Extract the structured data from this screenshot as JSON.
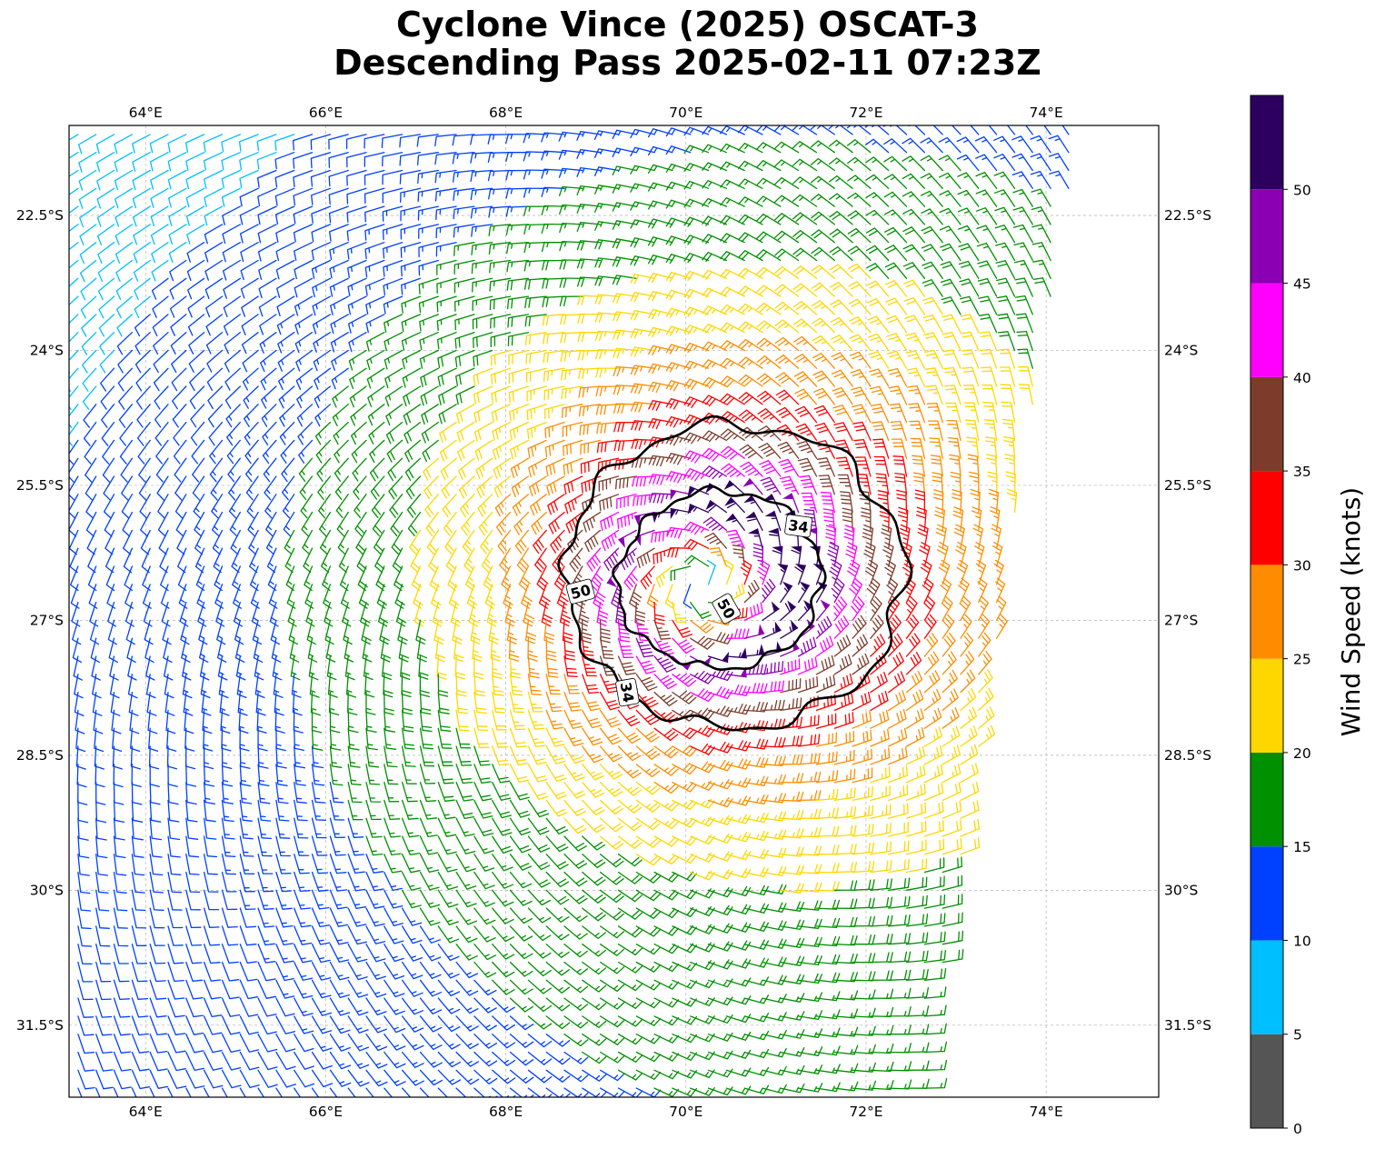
{
  "title": {
    "line1": "Cyclone Vince (2025) OSCAT-3",
    "line2": "Descending Pass 2025-02-11 07:23Z"
  },
  "map": {
    "lon_range": [
      63.15,
      75.25
    ],
    "lat_range": [
      -32.3,
      -21.5
    ],
    "gridlines": true,
    "lon_ticks": [
      64,
      66,
      68,
      70,
      72,
      74
    ],
    "lon_tick_labels": [
      "64°E",
      "66°E",
      "68°E",
      "70°E",
      "72°E",
      "74°E"
    ],
    "lat_ticks": [
      -22.5,
      -24,
      -25.5,
      -27,
      -28.5,
      -30,
      -31.5
    ],
    "lat_tick_labels": [
      "22.5°S",
      "24°S",
      "25.5°S",
      "27°S",
      "28.5°S",
      "30°S",
      "31.5°S"
    ],
    "cyclone_center": [
      70.2,
      -26.6
    ],
    "contours": [
      {
        "label": "34",
        "value_kt": 34
      },
      {
        "label": "50",
        "value_kt": 50
      }
    ]
  },
  "colorbar": {
    "label": "Wind Speed (knots)",
    "bounds": [
      0,
      5,
      10,
      15,
      20,
      25,
      30,
      35,
      40,
      45,
      50,
      55
    ],
    "tick_labels": [
      "0",
      "5",
      "10",
      "15",
      "20",
      "25",
      "30",
      "35",
      "40",
      "45",
      "50"
    ],
    "colors": [
      "#555555",
      "#00bfff",
      "#0040ff",
      "#009000",
      "#ffd700",
      "#ff8c00",
      "#ff0000",
      "#7d3c2b",
      "#ff00ff",
      "#8b00b3",
      "#2d0060"
    ]
  }
}
